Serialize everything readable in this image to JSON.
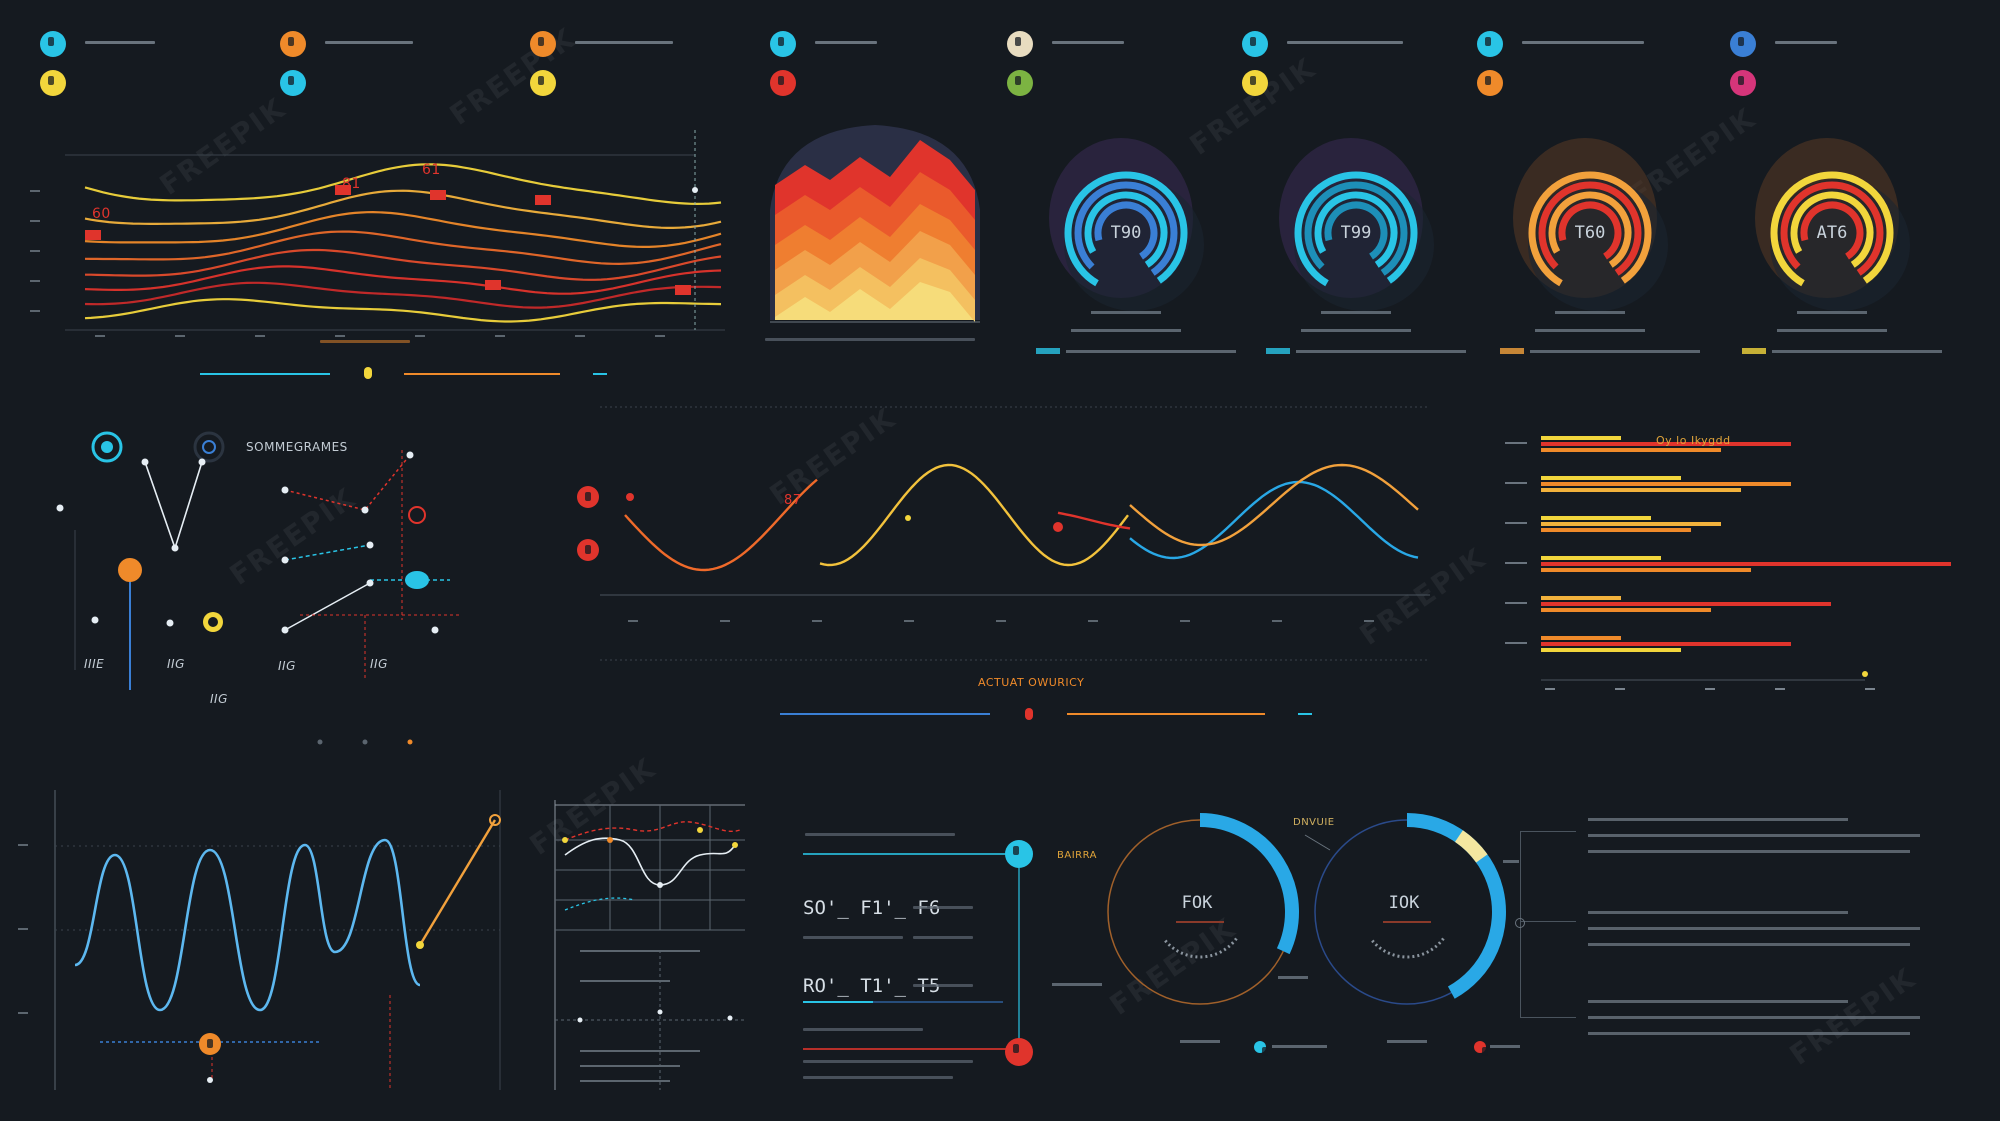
{
  "colors": {
    "background": "#151a20",
    "cyan": "#29c4e6",
    "blue": "#3a7fd5",
    "orange": "#ef8a2a",
    "red": "#e0342c",
    "yellow": "#f2d63c",
    "pink": "#d6357a",
    "green": "#7cb342"
  },
  "watermark": "FREEPIK",
  "legend": {
    "items": [
      {
        "icon": "water-drop-icon",
        "color": "#29c4e6"
      },
      {
        "icon": "cloud-icon",
        "color": "#ef8a2a"
      },
      {
        "icon": "chat-icon",
        "color": "#ef8a2a"
      },
      {
        "icon": "lock-icon",
        "color": "#29c4e6"
      },
      {
        "icon": "chat-icon",
        "color": "#e8dcc0"
      },
      {
        "icon": "water-drop-icon",
        "color": "#29c4e6"
      },
      {
        "icon": "link-icon",
        "color": "#29c4e6"
      },
      {
        "icon": "arrow-icon",
        "color": "#3a7fd5"
      },
      {
        "icon": "bolt-icon",
        "color": "#f2d63c"
      },
      {
        "icon": "chat-icon",
        "color": "#29c4e6"
      },
      {
        "icon": "bolt-icon",
        "color": "#f2d63c"
      },
      {
        "icon": "lock-icon",
        "color": "#e0342c"
      },
      {
        "icon": "leaf-icon",
        "color": "#7cb342"
      },
      {
        "icon": "bolt-icon",
        "color": "#f2d63c"
      },
      {
        "icon": "fire-icon",
        "color": "#ef8a2a"
      },
      {
        "icon": "heart-icon",
        "color": "#d6357a"
      }
    ]
  },
  "wave_chart": {
    "labels": [
      "60",
      "81",
      "61"
    ]
  },
  "rings": [
    {
      "value": "T90",
      "colors": [
        "#29c4e6",
        "#3a7fd5"
      ]
    },
    {
      "value": "T99",
      "colors": [
        "#29c4e6",
        "#1d8fb8"
      ]
    },
    {
      "value": "T60",
      "colors": [
        "#f2a13c",
        "#e0342c"
      ]
    },
    {
      "value": "AT6",
      "colors": [
        "#f2d63c",
        "#e0342c"
      ]
    }
  ],
  "scatter_panel": {
    "title": "SOMMEGRAMES",
    "labels": [
      "IIIE",
      "IIG",
      "IIG",
      "IIG",
      "IIG"
    ]
  },
  "main_wave": {
    "marker_label": "87",
    "title": "ACTUAT OWURICY"
  },
  "hbars": {
    "title": "Oy lo Ikygdd"
  },
  "data_rows": [
    {
      "value": "SO'_ F1'_ F6"
    },
    {
      "value": "RO'_ T1'_ T5"
    }
  ],
  "gauges": [
    {
      "value": "FOK",
      "label": "BAIRRA",
      "level": 0.32
    },
    {
      "value": "IOK",
      "label": "DNVUIE",
      "level": 0.42
    }
  ]
}
